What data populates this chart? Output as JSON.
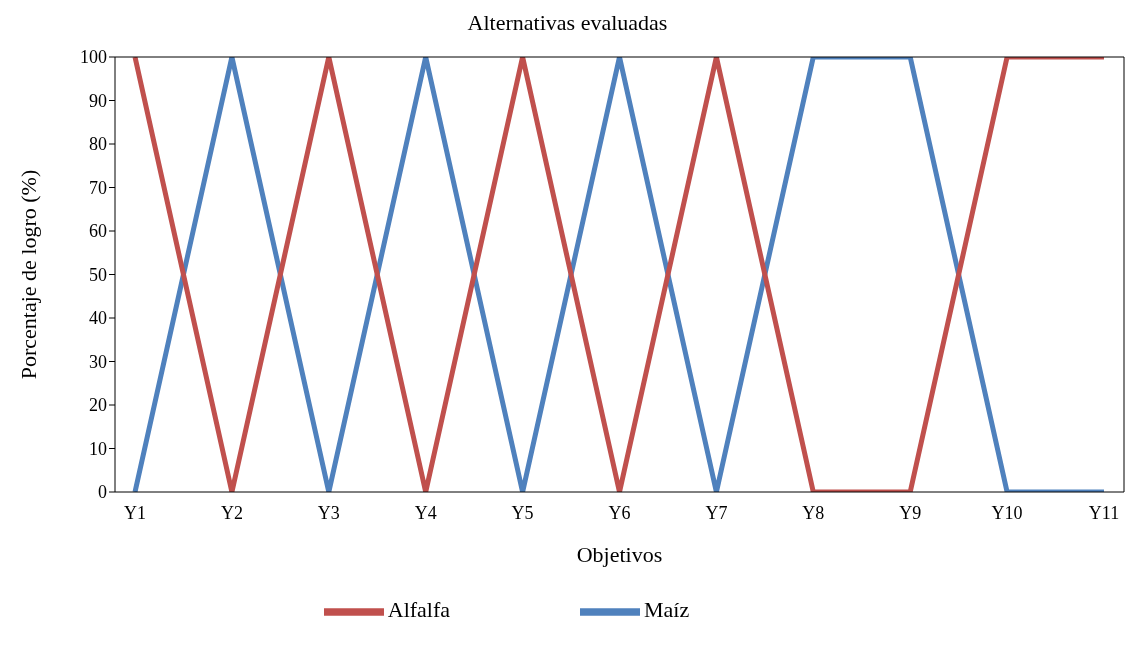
{
  "chart_data": {
    "type": "line",
    "title": "Alternativas evaluadas",
    "xlabel": "Objetivos",
    "ylabel": "Porcentaje de logro (%)",
    "categories": [
      "Y1",
      "Y2",
      "Y3",
      "Y4",
      "Y5",
      "Y6",
      "Y7",
      "Y8",
      "Y9",
      "Y10",
      "Y11"
    ],
    "series": [
      {
        "name": "Maíz",
        "color": "#4f81bd",
        "values": [
          0,
          100,
          0,
          100,
          0,
          100,
          0,
          100,
          100,
          0,
          0
        ]
      },
      {
        "name": "Alfalfa",
        "color": "#c0504d",
        "values": [
          100,
          0,
          100,
          0,
          100,
          0,
          100,
          0,
          0,
          100,
          100
        ]
      }
    ],
    "ylim": [
      0,
      100
    ],
    "yticks": [
      0,
      10,
      20,
      30,
      40,
      50,
      60,
      70,
      80,
      90,
      100
    ],
    "grid": false,
    "legend": "bottom",
    "marker": "none",
    "line_style": "solid"
  }
}
